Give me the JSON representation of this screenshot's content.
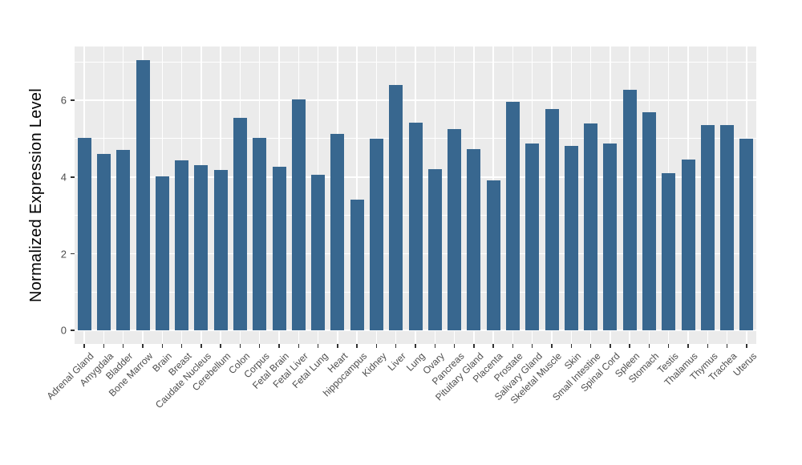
{
  "chart_data": {
    "type": "bar",
    "title": "",
    "xlabel": "",
    "ylabel": "Normalized Expression Level",
    "categories": [
      "Adrenal Gland",
      "Amygdala",
      "Bladder",
      "Bone Marrow",
      "Brain",
      "Breast",
      "Caudate Nucleus",
      "Cerebellum",
      "Colon",
      "Corpus",
      "Fetal Brain",
      "Fetal Liver",
      "Fetal Lung",
      "Heart",
      "hippocampus",
      "Kidney",
      "Liver",
      "Lung",
      "Ovary",
      "Pancreas",
      "Pituitary Gland",
      "Placenta",
      "Prostate",
      "Salivary Gland",
      "Skeletal Muscle",
      "Skin",
      "Small Intestine",
      "Spinal Cord",
      "Spleen",
      "Stomach",
      "Testis",
      "Thalamus",
      "Thymus",
      "Trachea",
      "Uterus"
    ],
    "values": [
      5.02,
      4.6,
      4.7,
      7.05,
      4.02,
      4.44,
      4.3,
      4.18,
      5.55,
      5.02,
      4.26,
      6.02,
      4.05,
      5.12,
      3.42,
      5.0,
      6.4,
      5.42,
      4.2,
      5.24,
      4.73,
      3.92,
      5.95,
      4.87,
      5.78,
      4.8,
      5.4,
      4.87,
      6.27,
      5.68,
      4.1,
      4.46,
      5.35,
      5.35,
      5.0
    ],
    "ylim": [
      -0.35,
      7.4
    ],
    "yticks": [
      0,
      2,
      4,
      6
    ],
    "yticks_minor": [
      1,
      3,
      5,
      7
    ],
    "grid": true,
    "legend": "none",
    "colors": {
      "bar": "#38678F",
      "panel_background": "#EBEBEB",
      "gridline": "#FFFFFF",
      "tick_label": "#4D4D4D",
      "axis_title": "#000000",
      "tick_mark": "#333333",
      "figure_background": "#FFFFFF"
    }
  }
}
